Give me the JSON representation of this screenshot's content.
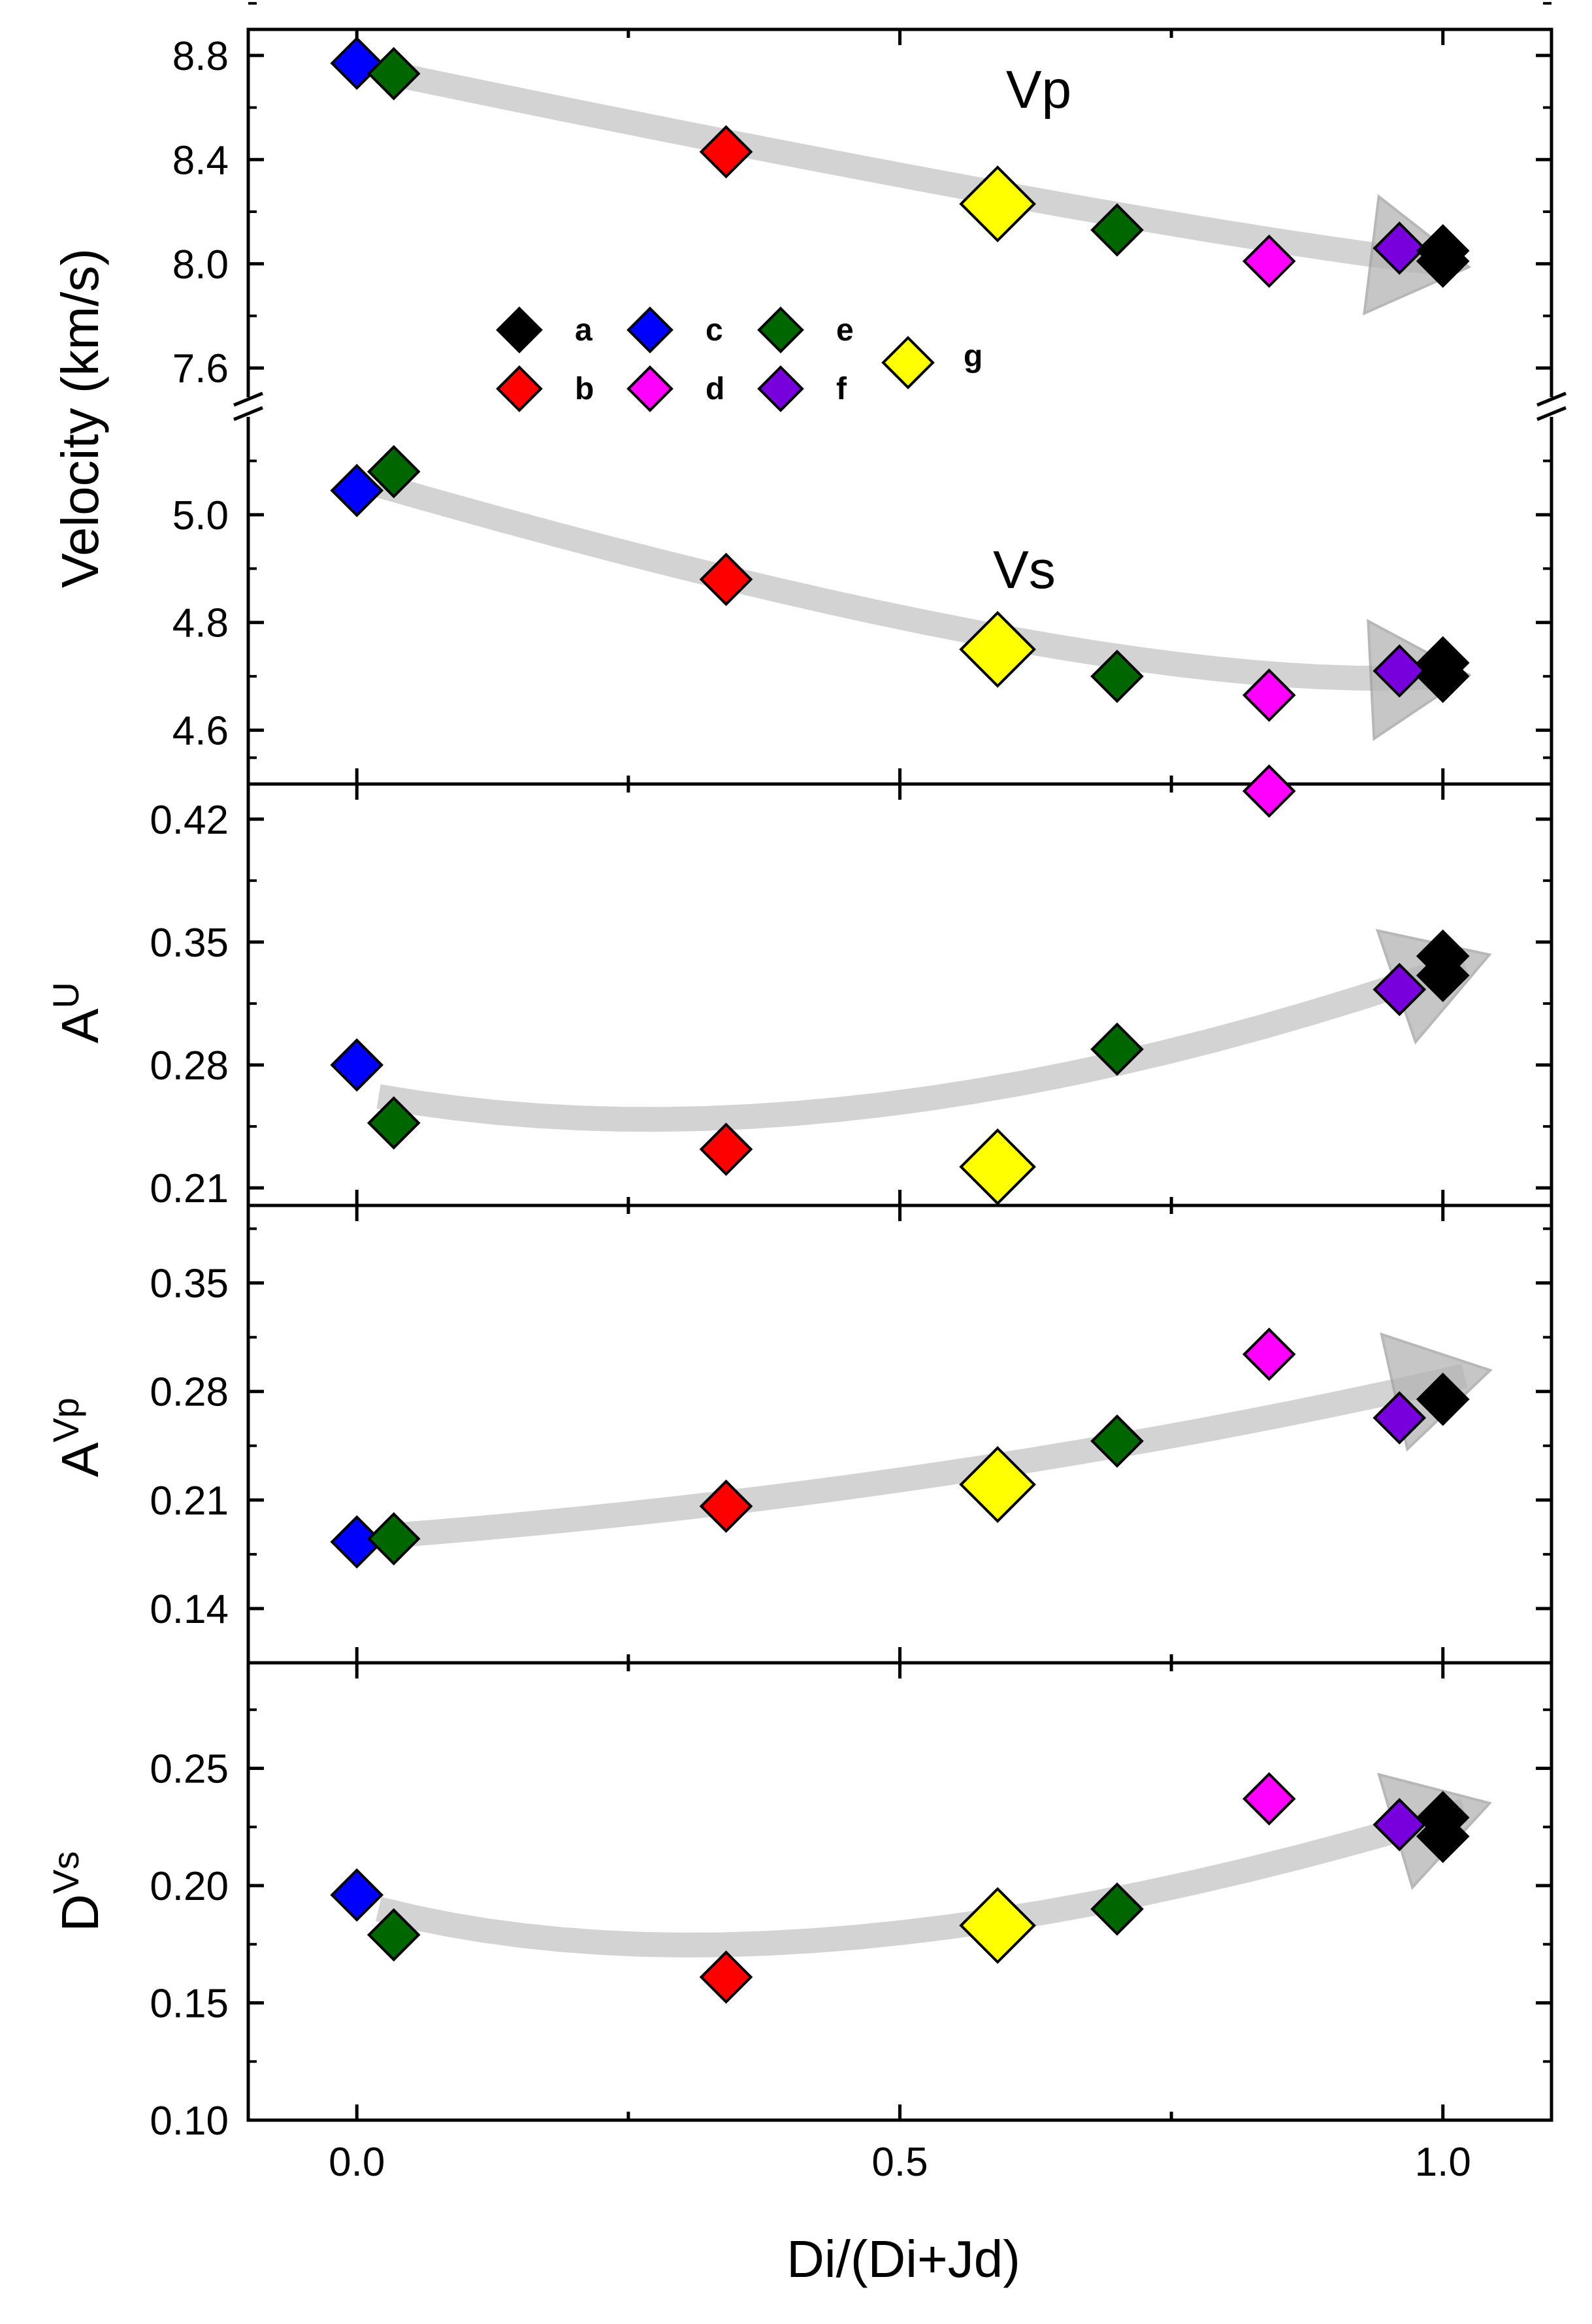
{
  "chart_data": [
    {
      "type": "scatter",
      "panel": "velocity",
      "xlabel": "Di/(Di+Jd)",
      "ylabel": "Velocity (km/s)",
      "xlim": [
        -0.1,
        1.1
      ],
      "xticks": [
        "0.0",
        "0.5",
        "1.0"
      ],
      "axis_break": {
        "lower": [
          4.5,
          5.2
        ],
        "upper": [
          7.45,
          8.9
        ]
      },
      "yticks_upper": [
        "7.6",
        "8.0",
        "8.4",
        "8.8"
      ],
      "yticks_lower": [
        "4.6",
        "4.8",
        "5.0"
      ],
      "legend": {
        "position": "upper-left",
        "entries": [
          "a",
          "c",
          "e",
          "b",
          "d",
          "f",
          "g"
        ]
      },
      "series": [
        {
          "name": "Vp",
          "values": [
            {
              "label": "c",
              "x": 0.0,
              "y": 8.77
            },
            {
              "label": "e",
              "x": 0.034,
              "y": 8.73
            },
            {
              "label": "b",
              "x": 0.34,
              "y": 8.43
            },
            {
              "label": "g",
              "x": 0.59,
              "y": 8.23
            },
            {
              "label": "e",
              "x": 0.7,
              "y": 8.13
            },
            {
              "label": "d",
              "x": 0.84,
              "y": 8.01
            },
            {
              "label": "f",
              "x": 0.96,
              "y": 8.06
            },
            {
              "label": "a",
              "x": 1.0,
              "y": 8.05
            },
            {
              "label": "a",
              "x": 1.0,
              "y": 8.01
            }
          ]
        },
        {
          "name": "Vs",
          "values": [
            {
              "label": "c",
              "x": 0.0,
              "y": 5.045
            },
            {
              "label": "e",
              "x": 0.034,
              "y": 5.08
            },
            {
              "label": "b",
              "x": 0.34,
              "y": 4.88
            },
            {
              "label": "g",
              "x": 0.59,
              "y": 4.75
            },
            {
              "label": "e",
              "x": 0.7,
              "y": 4.7
            },
            {
              "label": "d",
              "x": 0.84,
              "y": 4.665
            },
            {
              "label": "f",
              "x": 0.96,
              "y": 4.71
            },
            {
              "label": "a",
              "x": 1.0,
              "y": 4.725
            },
            {
              "label": "a",
              "x": 1.0,
              "y": 4.7
            }
          ]
        }
      ]
    },
    {
      "type": "scatter",
      "panel": "AU",
      "ylabel": "A^U",
      "xlim": [
        -0.1,
        1.1
      ],
      "ylim": [
        0.2,
        0.44
      ],
      "yticks": [
        "0.21",
        "0.28",
        "0.35",
        "0.42"
      ],
      "series": [
        {
          "name": "",
          "values": [
            {
              "label": "c",
              "x": 0.0,
              "y": 0.28
            },
            {
              "label": "e",
              "x": 0.034,
              "y": 0.247
            },
            {
              "label": "b",
              "x": 0.34,
              "y": 0.232
            },
            {
              "label": "g",
              "x": 0.59,
              "y": 0.222
            },
            {
              "label": "e",
              "x": 0.7,
              "y": 0.289
            },
            {
              "label": "d",
              "x": 0.84,
              "y": 0.436
            },
            {
              "label": "f",
              "x": 0.96,
              "y": 0.323
            },
            {
              "label": "a",
              "x": 1.0,
              "y": 0.342
            },
            {
              "label": "a",
              "x": 1.0,
              "y": 0.331
            }
          ]
        }
      ]
    },
    {
      "type": "scatter",
      "panel": "AVp",
      "ylabel": "A^Vp",
      "xlim": [
        -0.1,
        1.1
      ],
      "ylim": [
        0.105,
        0.4
      ],
      "yticks": [
        "0.14",
        "0.21",
        "0.28",
        "0.35"
      ],
      "series": [
        {
          "name": "",
          "values": [
            {
              "label": "c",
              "x": 0.0,
              "y": 0.183
            },
            {
              "label": "e",
              "x": 0.034,
              "y": 0.185
            },
            {
              "label": "b",
              "x": 0.34,
              "y": 0.206
            },
            {
              "label": "g",
              "x": 0.59,
              "y": 0.22
            },
            {
              "label": "e",
              "x": 0.7,
              "y": 0.248
            },
            {
              "label": "d",
              "x": 0.84,
              "y": 0.304
            },
            {
              "label": "f",
              "x": 0.96,
              "y": 0.263
            },
            {
              "label": "a",
              "x": 1.0,
              "y": 0.275
            }
          ]
        }
      ]
    },
    {
      "type": "scatter",
      "panel": "DVs",
      "ylabel": "D^Vs",
      "xlim": [
        -0.1,
        1.1
      ],
      "ylim": [
        0.1,
        0.295
      ],
      "yticks": [
        "0.10",
        "0.15",
        "0.20",
        "0.25"
      ],
      "series": [
        {
          "name": "",
          "values": [
            {
              "label": "c",
              "x": 0.0,
              "y": 0.196
            },
            {
              "label": "e",
              "x": 0.034,
              "y": 0.179
            },
            {
              "label": "b",
              "x": 0.34,
              "y": 0.161
            },
            {
              "label": "g",
              "x": 0.59,
              "y": 0.183
            },
            {
              "label": "e",
              "x": 0.7,
              "y": 0.19
            },
            {
              "label": "d",
              "x": 0.84,
              "y": 0.237
            },
            {
              "label": "f",
              "x": 0.96,
              "y": 0.226
            },
            {
              "label": "a",
              "x": 1.0,
              "y": 0.229
            },
            {
              "label": "a",
              "x": 1.0,
              "y": 0.221
            }
          ]
        }
      ]
    }
  ],
  "colors": {
    "a": "#000000",
    "b": "#ff0000",
    "c": "#0000ff",
    "d": "#ff00ff",
    "e": "#006600",
    "f": "#7700dd",
    "g": "#ffff00",
    "trend": "#c8c8c8"
  }
}
